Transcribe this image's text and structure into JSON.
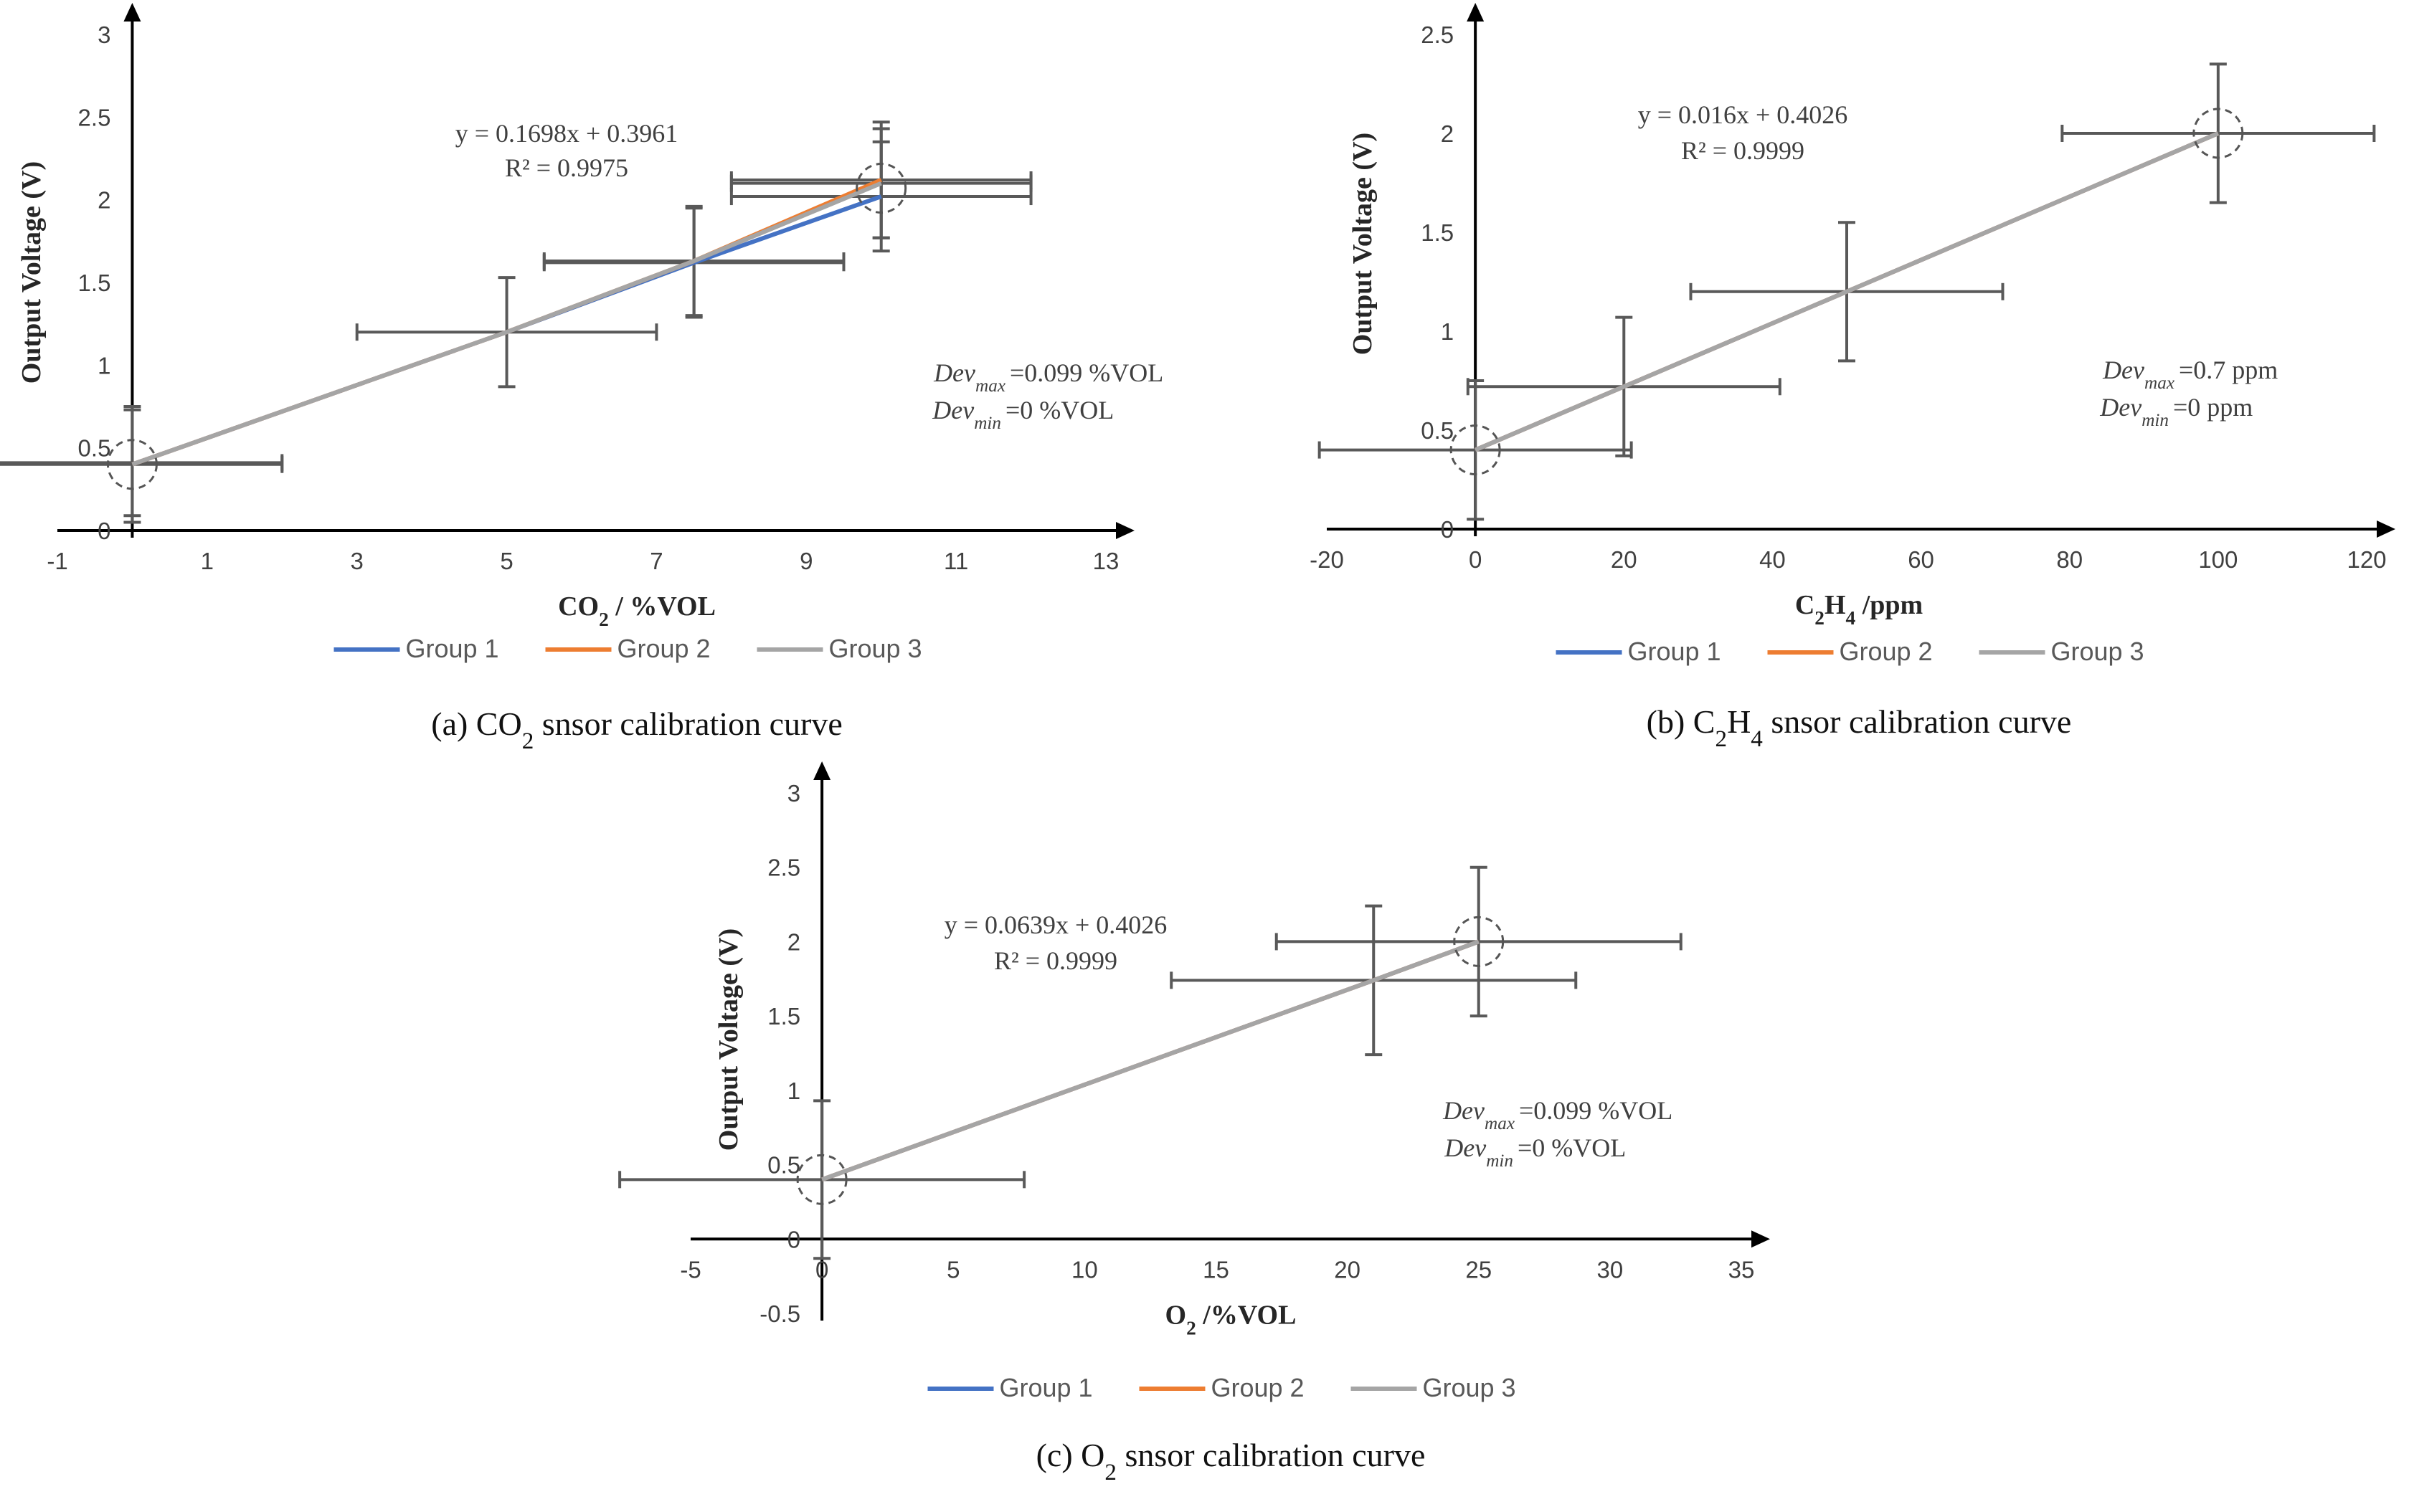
{
  "colors": {
    "group1": "#4472C4",
    "group2": "#ED7D31",
    "group3": "#A5A5A5",
    "errbar": "#595959",
    "axis": "#000000"
  },
  "chart_data": [
    {
      "type": "line",
      "caption": {
        "pre": "(a) CO",
        "sub": "2",
        "post": " snsor calibration curve"
      },
      "xlabel": {
        "pre": "CO",
        "sub": "2",
        "post": " / %VOL"
      },
      "ylabel": "Output Voltage (V)",
      "xlim": [
        -1,
        13
      ],
      "ylim": [
        0,
        3
      ],
      "xticks": [
        -1,
        1,
        3,
        5,
        7,
        9,
        11,
        13
      ],
      "yticks": [
        0,
        0.5,
        1,
        1.5,
        2,
        2.5,
        3
      ],
      "tick_labels_x": [
        "-1",
        "1",
        "3",
        "5",
        "7",
        "9",
        "11",
        "13"
      ],
      "tick_labels_y": [
        "0",
        "0.5",
        "1",
        "1.5",
        "2",
        "2.5",
        "3"
      ],
      "equation": "y = 0.1698x + 0.3961",
      "r2": "R² = 0.9975",
      "dev_max": "=0.099 %VOL",
      "dev_min": "=0 %VOL",
      "legend": [
        "Group 1",
        "Group 2",
        "Group 3"
      ],
      "series": [
        {
          "name": "Group 1",
          "x": [
            0,
            5,
            7.5,
            10
          ],
          "y": [
            0.4,
            1.2,
            1.62,
            2.02
          ]
        },
        {
          "name": "Group 2",
          "x": [
            0,
            5,
            7.5,
            10
          ],
          "y": [
            0.4,
            1.2,
            1.63,
            2.12
          ]
        },
        {
          "name": "Group 3",
          "x": [
            0,
            5,
            7.5,
            10
          ],
          "y": [
            0.4,
            1.2,
            1.63,
            2.1
          ]
        }
      ],
      "error_bars": [
        {
          "x": 0,
          "y": 0.4,
          "xerr": 2,
          "yerr": 0.35
        },
        {
          "x": 0,
          "y": 0.41,
          "xerr": 2,
          "yerr": 0.32
        },
        {
          "x": 5,
          "y": 1.2,
          "xerr": 2,
          "yerr": 0.33
        },
        {
          "x": 7.5,
          "y": 1.62,
          "xerr": 2,
          "yerr": 0.33
        },
        {
          "x": 7.5,
          "y": 1.63,
          "xerr": 2,
          "yerr": 0.33
        },
        {
          "x": 10,
          "y": 2.02,
          "xerr": 2,
          "yerr": 0.33
        },
        {
          "x": 10,
          "y": 2.1,
          "xerr": 2,
          "yerr": 0.33
        },
        {
          "x": 10,
          "y": 2.12,
          "xerr": 2,
          "yerr": 0.35
        }
      ],
      "highlight_points": [
        {
          "x": 0,
          "y": 0.4
        },
        {
          "x": 10,
          "y": 2.07
        }
      ]
    },
    {
      "type": "line",
      "caption": {
        "pre": "(b) C",
        "sub": "2",
        "post": "H",
        "sub2": "4",
        "post2": " snsor calibration curve"
      },
      "xlabel": {
        "pre": "C",
        "sub": "2",
        "post": "H",
        "sub2": "4",
        "post2": " /ppm"
      },
      "ylabel": "Output Voltage (V)",
      "xlim": [
        -20,
        120
      ],
      "ylim": [
        0,
        2.5
      ],
      "xticks": [
        -20,
        0,
        20,
        40,
        60,
        80,
        100,
        120
      ],
      "yticks": [
        0,
        0.5,
        1,
        1.5,
        2,
        2.5
      ],
      "tick_labels_x": [
        "-20",
        "0",
        "20",
        "40",
        "60",
        "80",
        "100",
        "120"
      ],
      "tick_labels_y": [
        "0",
        "0.5",
        "1",
        "1.5",
        "2",
        "2.5"
      ],
      "equation": "y = 0.016x + 0.4026",
      "r2": "R² = 0.9999",
      "dev_max": "=0.7 ppm",
      "dev_min": "=0 ppm",
      "legend": [
        "Group 1",
        "Group 2",
        "Group 3"
      ],
      "series": [
        {
          "name": "Group 1",
          "x": [
            0,
            20,
            50,
            100
          ],
          "y": [
            0.4,
            0.72,
            1.2,
            2.0
          ]
        },
        {
          "name": "Group 2",
          "x": [
            0,
            20,
            50,
            100
          ],
          "y": [
            0.4,
            0.72,
            1.2,
            2.0
          ]
        },
        {
          "name": "Group 3",
          "x": [
            0,
            20,
            50,
            100
          ],
          "y": [
            0.4,
            0.72,
            1.2,
            2.0
          ]
        }
      ],
      "error_bars": [
        {
          "x": 0,
          "y": 0.4,
          "xerr": 21,
          "yerr": 0.35
        },
        {
          "x": 20,
          "y": 0.72,
          "xerr": 21,
          "yerr": 0.35
        },
        {
          "x": 50,
          "y": 1.2,
          "xerr": 21,
          "yerr": 0.35
        },
        {
          "x": 100,
          "y": 2.0,
          "xerr": 21,
          "yerr": 0.35
        }
      ],
      "highlight_points": [
        {
          "x": 0,
          "y": 0.4
        },
        {
          "x": 100,
          "y": 2.0
        }
      ]
    },
    {
      "type": "line",
      "caption": {
        "pre": "(c) O",
        "sub": "2",
        "post": " snsor calibration curve"
      },
      "xlabel": {
        "pre": "O",
        "sub": "2",
        "post": " /%VOL"
      },
      "ylabel": "Output Voltage (V)",
      "xlim": [
        -5,
        35
      ],
      "ylim": [
        -0.5,
        3
      ],
      "xticks": [
        -5,
        0,
        5,
        10,
        15,
        20,
        25,
        30,
        35
      ],
      "yticks": [
        -0.5,
        0,
        0.5,
        1,
        1.5,
        2,
        2.5,
        3
      ],
      "tick_labels_x": [
        "-5",
        "0",
        "5",
        "10",
        "15",
        "20",
        "25",
        "30",
        "35"
      ],
      "tick_labels_y": [
        "-0.5",
        "0",
        "0.5",
        "1",
        "1.5",
        "2",
        "2.5",
        "3"
      ],
      "equation": "y = 0.0639x + 0.4026",
      "r2": "R² = 0.9999",
      "dev_max": "=0.099 %VOL",
      "dev_min": "=0 %VOL",
      "legend": [
        "Group 1",
        "Group 2",
        "Group 3"
      ],
      "series": [
        {
          "name": "Group 1",
          "x": [
            0,
            21,
            25
          ],
          "y": [
            0.4,
            1.74,
            2.0
          ]
        },
        {
          "name": "Group 2",
          "x": [
            0,
            21,
            25
          ],
          "y": [
            0.4,
            1.74,
            2.0
          ]
        },
        {
          "name": "Group 3",
          "x": [
            0,
            21,
            25
          ],
          "y": [
            0.4,
            1.74,
            2.0
          ]
        }
      ],
      "error_bars": [
        {
          "x": 0,
          "y": 0.4,
          "xerr": 7.7,
          "yerr": 0.53
        },
        {
          "x": 21,
          "y": 1.74,
          "xerr": 7.7,
          "yerr": 0.5
        },
        {
          "x": 25,
          "y": 2.0,
          "xerr": 7.7,
          "yerr": 0.5
        }
      ],
      "highlight_points": [
        {
          "x": 0,
          "y": 0.4
        },
        {
          "x": 25,
          "y": 2.0
        }
      ]
    }
  ]
}
